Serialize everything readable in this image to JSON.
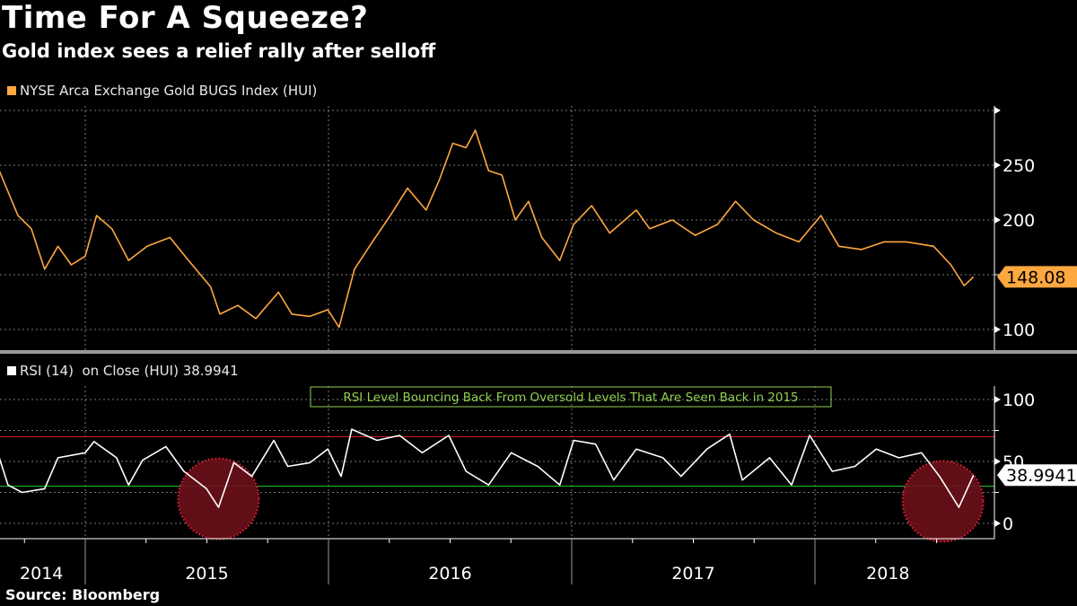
{
  "title": "Time For A Squeeze?",
  "subtitle": "Gold index sees a relief rally after selloff",
  "source": "Source: Bloomberg",
  "colors": {
    "price": "#ffa83f",
    "rsi": "#ffffff",
    "overbought": "#e02020",
    "oversold": "#22cc22",
    "annotation": "#8fd14f",
    "highlight": "#6b0f1a"
  },
  "chart_data": [
    {
      "type": "line",
      "legend": "NYSE Arca Exchange Gold BUGS Index (HUI)",
      "last_value_label": "148.08",
      "ylim": [
        80,
        300
      ],
      "yticks": [
        100,
        150,
        200,
        250,
        300
      ],
      "ytick_labels": [
        "100",
        "200",
        "250"
      ],
      "grid": true,
      "series": [
        {
          "name": "NYSE Arca Exchange Gold BUGS Index (HUI)",
          "points": [
            [
              "2014-08-25",
              245
            ],
            [
              "2014-09-22",
              204
            ],
            [
              "2014-10-12",
              192
            ],
            [
              "2014-11-01",
              155
            ],
            [
              "2014-11-21",
              176
            ],
            [
              "2014-12-11",
              159
            ],
            [
              "2015-01-01",
              167
            ],
            [
              "2015-01-18",
              204
            ],
            [
              "2015-02-10",
              192
            ],
            [
              "2015-03-07",
              163
            ],
            [
              "2015-04-04",
              176
            ],
            [
              "2015-05-08",
              184
            ],
            [
              "2015-06-05",
              163
            ],
            [
              "2015-07-08",
              139
            ],
            [
              "2015-07-22",
              114
            ],
            [
              "2015-08-18",
              122
            ],
            [
              "2015-09-14",
              110
            ],
            [
              "2015-10-18",
              134
            ],
            [
              "2015-11-07",
              114
            ],
            [
              "2015-12-04",
              112
            ],
            [
              "2015-12-31",
              118
            ],
            [
              "2016-01-17",
              102
            ],
            [
              "2016-02-09",
              155
            ],
            [
              "2016-03-07",
              180
            ],
            [
              "2016-04-03",
              204
            ],
            [
              "2016-04-29",
              229
            ],
            [
              "2016-05-27",
              209
            ],
            [
              "2016-06-16",
              237
            ],
            [
              "2016-07-06",
              270
            ],
            [
              "2016-07-26",
              266
            ],
            [
              "2016-08-09",
              282
            ],
            [
              "2016-08-29",
              245
            ],
            [
              "2016-09-18",
              241
            ],
            [
              "2016-10-08",
              200
            ],
            [
              "2016-10-28",
              217
            ],
            [
              "2016-11-17",
              184
            ],
            [
              "2016-12-14",
              163
            ],
            [
              "2017-01-04",
              196
            ],
            [
              "2017-01-31",
              213
            ],
            [
              "2017-02-27",
              188
            ],
            [
              "2017-04-08",
              209
            ],
            [
              "2017-04-28",
              192
            ],
            [
              "2017-06-01",
              200
            ],
            [
              "2017-07-05",
              186
            ],
            [
              "2017-08-08",
              196
            ],
            [
              "2017-09-04",
              217
            ],
            [
              "2017-10-01",
              200
            ],
            [
              "2017-11-04",
              188
            ],
            [
              "2017-12-08",
              180
            ],
            [
              "2018-01-10",
              204
            ],
            [
              "2018-02-06",
              176
            ],
            [
              "2018-03-12",
              173
            ],
            [
              "2018-04-15",
              180
            ],
            [
              "2018-05-18",
              180
            ],
            [
              "2018-06-28",
              176
            ],
            [
              "2018-07-24",
              159
            ],
            [
              "2018-08-13",
              140
            ],
            [
              "2018-08-27",
              148.08
            ]
          ]
        }
      ]
    },
    {
      "type": "line",
      "legend": "RSI (14)  on Close (HUI) 38.9941",
      "last_value_label": "38.9941",
      "ylim": [
        -10,
        110
      ],
      "yticks": [
        0,
        25,
        50,
        75,
        100
      ],
      "ytick_labels": [
        "0",
        "50",
        "100"
      ],
      "reference_lines": [
        {
          "value": 70,
          "color": "#e02020"
        },
        {
          "value": 30,
          "color": "#22cc22"
        }
      ],
      "annotation": "RSI Level Bouncing Back From Oversold Levels That Are Seen Back in 2015",
      "highlights": [
        {
          "date": "2015-07-20",
          "value": 22
        },
        {
          "date": "2018-07-12",
          "value": 20
        }
      ],
      "series": [
        {
          "name": "RSI (14)",
          "points": [
            [
              "2014-08-25",
              53
            ],
            [
              "2014-09-07",
              31
            ],
            [
              "2014-09-28",
              25
            ],
            [
              "2014-11-01",
              28
            ],
            [
              "2014-11-21",
              53
            ],
            [
              "2015-01-01",
              57
            ],
            [
              "2015-01-14",
              66
            ],
            [
              "2015-02-17",
              53
            ],
            [
              "2015-03-07",
              31
            ],
            [
              "2015-03-28",
              51
            ],
            [
              "2015-05-02",
              62
            ],
            [
              "2015-05-29",
              42
            ],
            [
              "2015-07-02",
              28
            ],
            [
              "2015-07-20",
              13
            ],
            [
              "2015-08-12",
              49
            ],
            [
              "2015-09-08",
              38
            ],
            [
              "2015-10-11",
              67
            ],
            [
              "2015-11-01",
              46
            ],
            [
              "2015-12-04",
              49
            ],
            [
              "2015-12-31",
              60
            ],
            [
              "2016-01-20",
              38
            ],
            [
              "2016-02-05",
              76
            ],
            [
              "2016-03-14",
              67
            ],
            [
              "2016-04-17",
              71
            ],
            [
              "2016-05-21",
              57
            ],
            [
              "2016-06-30",
              71
            ],
            [
              "2016-07-26",
              42
            ],
            [
              "2016-08-29",
              31
            ],
            [
              "2016-10-02",
              57
            ],
            [
              "2016-11-11",
              46
            ],
            [
              "2016-12-14",
              31
            ],
            [
              "2017-01-04",
              67
            ],
            [
              "2017-02-06",
              64
            ],
            [
              "2017-03-05",
              35
            ],
            [
              "2017-04-08",
              60
            ],
            [
              "2017-05-18",
              53
            ],
            [
              "2017-06-14",
              38
            ],
            [
              "2017-07-23",
              60
            ],
            [
              "2017-08-26",
              72
            ],
            [
              "2017-09-14",
              35
            ],
            [
              "2017-10-25",
              53
            ],
            [
              "2017-11-27",
              31
            ],
            [
              "2017-12-24",
              71
            ],
            [
              "2018-01-27",
              42
            ],
            [
              "2018-03-02",
              46
            ],
            [
              "2018-04-03",
              60
            ],
            [
              "2018-05-07",
              53
            ],
            [
              "2018-06-10",
              57
            ],
            [
              "2018-07-07",
              38
            ],
            [
              "2018-08-05",
              13
            ],
            [
              "2018-08-27",
              38.9941
            ]
          ]
        }
      ]
    }
  ],
  "xaxis": {
    "labels": [
      "2014",
      "2015",
      "2016",
      "2017",
      "2018"
    ],
    "year_starts": [
      "2015-01-01",
      "2016-01-01",
      "2017-01-01",
      "2018-01-01"
    ]
  }
}
